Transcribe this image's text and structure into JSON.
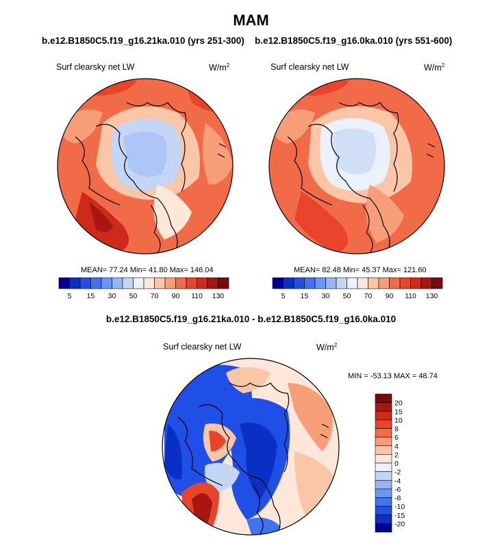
{
  "title": "MAM",
  "panels": [
    {
      "id": "left",
      "subtitle": "b.e12.B1850C5.f19_g16.21ka.010 (yrs 251-300)",
      "variable": "Surf clearsky net LW",
      "units_base": "W/m",
      "units_exp": "2",
      "stats": "MEAN=  77.24  Min=  41.80  Max= 146.04"
    },
    {
      "id": "right",
      "subtitle": "b.e12.B1850C5.f19_g16.0ka.010 (yrs 551-600)",
      "variable": "Surf clearsky net LW",
      "units_base": "W/m",
      "units_exp": "2",
      "stats": "MEAN=  82.48  Min=  45.37  Max= 121.60"
    },
    {
      "id": "diff",
      "subtitle": "b.e12.B1850C5.f19_g16.21ka.010 - b.e12.B1850C5.f19_g16.0ka.010",
      "variable": "Surf clearsky net LW",
      "units_base": "W/m",
      "units_exp": "2",
      "stats": "MIN = -53.13 MAX =  48.74"
    }
  ],
  "chart_data": [
    {
      "type": "heatmap",
      "projection": "north-polar-stereographic",
      "title": "Surf clearsky net LW",
      "units": "W/m2",
      "run": "b.e12.B1850C5.f19_g16.21ka.010 (yrs 251-300)",
      "mean": 77.24,
      "min": 41.8,
      "max": 146.04,
      "colorbar": {
        "orientation": "horizontal",
        "levels": [
          5,
          10,
          15,
          20,
          30,
          40,
          50,
          60,
          70,
          80,
          90,
          100,
          110,
          120,
          130
        ],
        "tick_labels": [
          "5",
          "15",
          "30",
          "50",
          "70",
          "90",
          "110",
          "130"
        ],
        "colors": [
          "#00008c",
          "#0a2fc4",
          "#1f4fe6",
          "#3f73f2",
          "#6b96f5",
          "#98b6f5",
          "#c5d6f5",
          "#eaf1fb",
          "#fde7d9",
          "#fbc6a8",
          "#f79d77",
          "#f26b49",
          "#e8432b",
          "#cc2a1a",
          "#a81612",
          "#7a0a0a"
        ]
      }
    },
    {
      "type": "heatmap",
      "projection": "north-polar-stereographic",
      "title": "Surf clearsky net LW",
      "units": "W/m2",
      "run": "b.e12.B1850C5.f19_g16.0ka.010 (yrs 551-600)",
      "mean": 82.48,
      "min": 45.37,
      "max": 121.6,
      "colorbar": {
        "orientation": "horizontal",
        "levels": [
          5,
          10,
          15,
          20,
          30,
          40,
          50,
          60,
          70,
          80,
          90,
          100,
          110,
          120,
          130
        ],
        "tick_labels": [
          "5",
          "15",
          "30",
          "50",
          "70",
          "90",
          "110",
          "130"
        ],
        "colors": [
          "#00008c",
          "#0a2fc4",
          "#1f4fe6",
          "#3f73f2",
          "#6b96f5",
          "#98b6f5",
          "#c5d6f5",
          "#eaf1fb",
          "#fde7d9",
          "#fbc6a8",
          "#f79d77",
          "#f26b49",
          "#e8432b",
          "#cc2a1a",
          "#a81612",
          "#7a0a0a"
        ]
      }
    },
    {
      "type": "heatmap",
      "projection": "north-polar-stereographic",
      "title": "Surf clearsky net LW",
      "units": "W/m2",
      "run": "b.e12.B1850C5.f19_g16.21ka.010 - b.e12.B1850C5.f19_g16.0ka.010",
      "min": -53.13,
      "max": 48.74,
      "colorbar": {
        "orientation": "vertical",
        "levels": [
          20,
          15,
          10,
          8,
          6,
          4,
          2,
          0,
          -2,
          -4,
          -6,
          -8,
          -10,
          -15,
          -20
        ],
        "tick_labels": [
          "20",
          "15",
          "10",
          "8",
          "6",
          "4",
          "2",
          "0",
          "-2",
          "-4",
          "-6",
          "-8",
          "-10",
          "-15",
          "-20"
        ],
        "colors": [
          "#7a0a0a",
          "#a81612",
          "#cc2a1a",
          "#e8432b",
          "#f26b49",
          "#f79d77",
          "#fbc6a8",
          "#fde7d9",
          "#eaf1fb",
          "#c5d6f5",
          "#98b6f5",
          "#6b96f5",
          "#3f73f2",
          "#1f4fe6",
          "#0a2fc4",
          "#00008c"
        ]
      }
    }
  ]
}
